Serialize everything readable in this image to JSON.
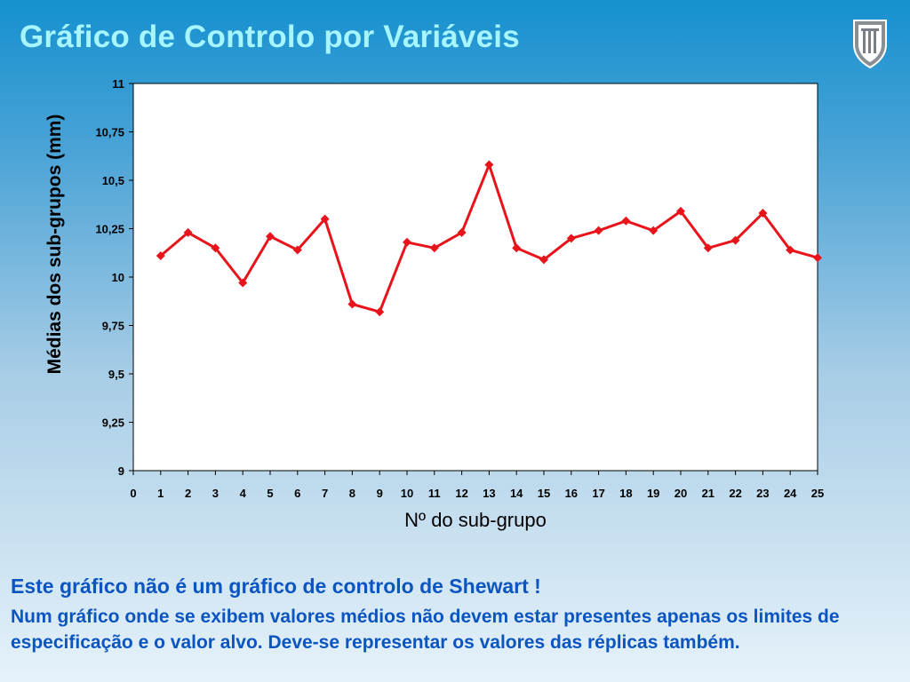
{
  "slide": {
    "title": "Gráfico de Controlo por Variáveis",
    "logo_icon": "university-shield-logo-icon",
    "note_heading": "Este gráfico não é um gráfico de controlo de Shewart !",
    "note_body": "Num gráfico onde se exibem valores médios não devem estar presentes apenas os limites de especificação e o valor alvo. Deve-se representar os valores das réplicas também."
  },
  "chart_data": {
    "type": "line",
    "title": "",
    "xlabel": "Nº do sub-grupo",
    "ylabel": "Médias dos sub-grupos (mm)",
    "xlim": [
      0,
      25
    ],
    "ylim": [
      9,
      11
    ],
    "x_ticks": [
      "0",
      "1",
      "2",
      "3",
      "4",
      "5",
      "6",
      "7",
      "8",
      "9",
      "10",
      "11",
      "12",
      "13",
      "14",
      "15",
      "16",
      "17",
      "18",
      "19",
      "20",
      "21",
      "22",
      "23",
      "24",
      "25"
    ],
    "y_ticks": [
      {
        "value": 9,
        "label": "9"
      },
      {
        "value": 9.25,
        "label": "9,25"
      },
      {
        "value": 9.5,
        "label": "9,5"
      },
      {
        "value": 9.75,
        "label": "9,75"
      },
      {
        "value": 10,
        "label": "10"
      },
      {
        "value": 10.25,
        "label": "10,25"
      },
      {
        "value": 10.5,
        "label": "10,5"
      },
      {
        "value": 10.75,
        "label": "10,75"
      },
      {
        "value": 11,
        "label": "11"
      }
    ],
    "grid": false,
    "legend": "none",
    "series": [
      {
        "color": "#e8141b",
        "marker": "diamond",
        "x": [
          1,
          2,
          3,
          4,
          5,
          6,
          7,
          8,
          9,
          10,
          11,
          12,
          13,
          14,
          15,
          16,
          17,
          18,
          19,
          20,
          21,
          22,
          23,
          24,
          25
        ],
        "y": [
          10.11,
          10.23,
          10.15,
          9.97,
          10.21,
          10.14,
          10.3,
          9.86,
          9.82,
          10.18,
          10.15,
          10.23,
          10.58,
          10.15,
          10.09,
          10.2,
          10.24,
          10.29,
          10.24,
          10.34,
          10.15,
          10.19,
          10.33,
          10.14,
          10.1
        ]
      }
    ],
    "plot_background": "#ffffff"
  }
}
